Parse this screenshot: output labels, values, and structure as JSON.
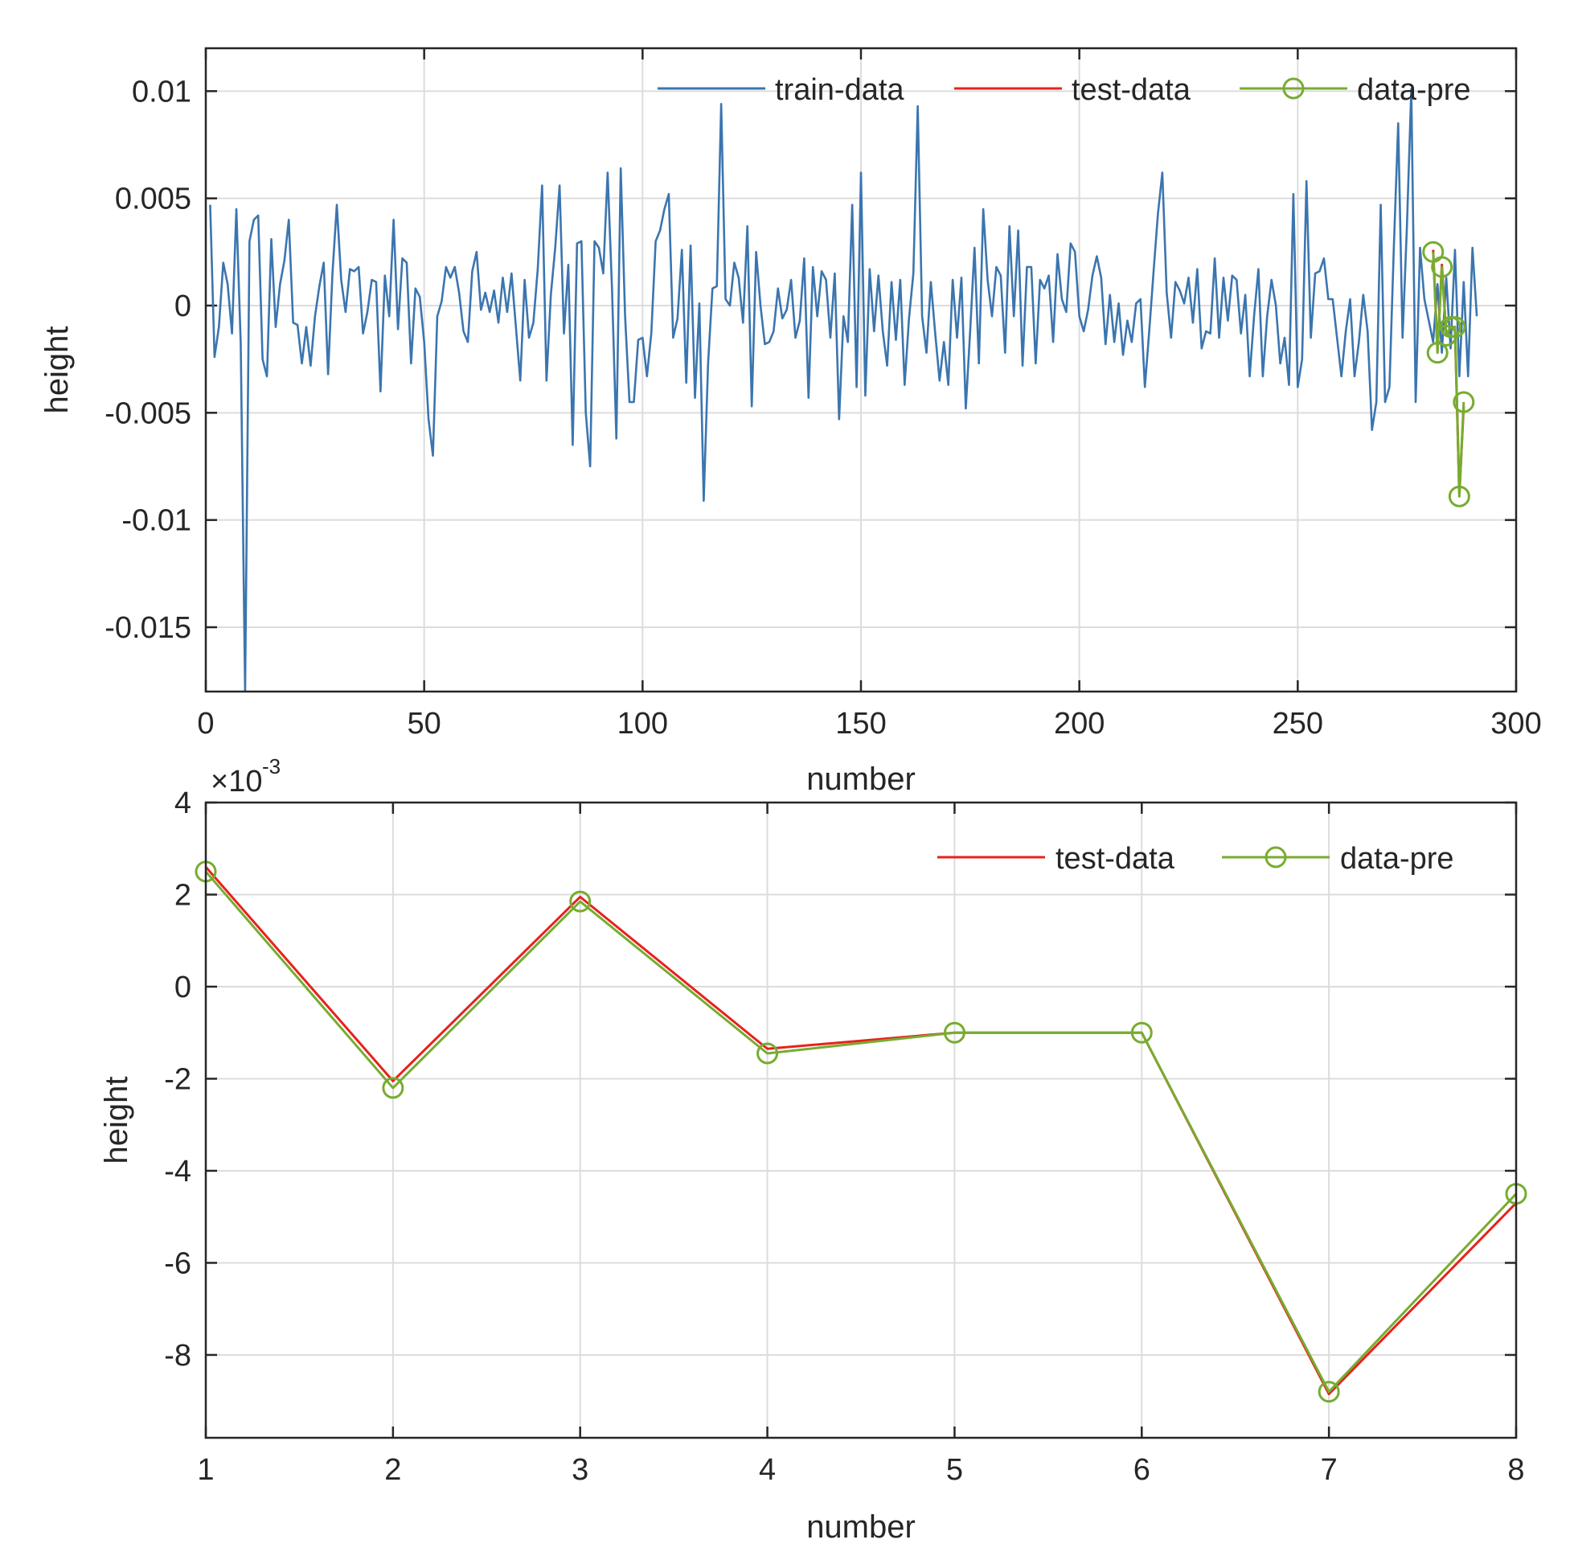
{
  "colors": {
    "train": "#3b75af",
    "test": "#e8211d",
    "pre": "#77ac30",
    "grid": "#dcdcdc",
    "axis": "#262626"
  },
  "chart_data": [
    {
      "id": "top",
      "type": "line",
      "xlabel": "number",
      "ylabel": "height",
      "xlim": [
        0,
        300
      ],
      "ylim": [
        -0.018,
        0.012
      ],
      "xticks": [
        0,
        50,
        100,
        150,
        200,
        250,
        300
      ],
      "yticks": [
        0.01,
        0.005,
        0,
        -0.005,
        -0.01,
        -0.015
      ],
      "xtick_labels": [
        "0",
        "50",
        "100",
        "150",
        "200",
        "250",
        "300"
      ],
      "ytick_labels": [
        "0.01",
        "0.005",
        "0",
        "-0.005",
        "-0.01",
        "-0.015"
      ],
      "grid": true,
      "legend": {
        "position": "top-right",
        "entries": [
          "train-data",
          "test-data",
          "data-pre"
        ]
      },
      "series": [
        {
          "name": "train-data",
          "x_start": 1,
          "values": [
            0.0047,
            -0.0024,
            -0.001,
            0.002,
            0.001,
            -0.0013,
            0.0045,
            -0.0018,
            -0.018,
            0.003,
            0.004,
            0.0042,
            -0.0025,
            -0.0033,
            0.0031,
            -0.001,
            0.001,
            0.0021,
            0.004,
            -0.0008,
            -0.0009,
            -0.0027,
            -0.001,
            -0.0028,
            -0.0005,
            0.0009,
            0.002,
            -0.0032,
            0.0015,
            0.0047,
            0.0012,
            -0.0003,
            0.0017,
            0.0016,
            0.0018,
            -0.0013,
            -0.0003,
            0.0012,
            0.0011,
            -0.004,
            0.0014,
            -0.0005,
            0.004,
            -0.0011,
            0.0022,
            0.002,
            -0.0027,
            0.0008,
            0.0004,
            -0.0017,
            -0.0053,
            -0.007,
            -0.0005,
            0.0002,
            0.0018,
            0.0013,
            0.0018,
            0.0006,
            -0.0012,
            -0.0017,
            0.0016,
            0.0025,
            -0.0002,
            0.0006,
            -0.0003,
            0.0007,
            -0.0008,
            0.0013,
            -0.0003,
            0.0015,
            -0.001,
            -0.0035,
            0.0012,
            -0.0015,
            -0.0008,
            0.0017,
            0.0056,
            -0.0035,
            0.0005,
            0.0027,
            0.0056,
            -0.0013,
            0.0019,
            -0.0065,
            0.0029,
            0.003,
            -0.005,
            -0.0075,
            0.003,
            0.0027,
            0.0015,
            0.0062,
            0.0008,
            -0.0062,
            0.0064,
            -0.0005,
            -0.0045,
            -0.0045,
            -0.0016,
            -0.0015,
            -0.0033,
            -0.0013,
            0.003,
            0.0035,
            0.0045,
            0.0052,
            -0.0015,
            -0.0006,
            0.0026,
            -0.0036,
            0.0028,
            -0.0043,
            0.0001,
            -0.0091,
            -0.0027,
            0.0008,
            0.0009,
            0.0094,
            0.0003,
            0,
            0.002,
            0.0013,
            -0.0008,
            0.0037,
            -0.0047,
            0.0025,
            0,
            -0.0018,
            -0.0017,
            -0.0012,
            0.0008,
            -0.0006,
            -0.0002,
            0.0012,
            -0.0015,
            -0.0007,
            0.0022,
            -0.0043,
            0.0018,
            -0.0005,
            0.0016,
            0.0012,
            -0.0015,
            0.0015,
            -0.0053,
            -0.0005,
            -0.0017,
            0.0047,
            -0.0038,
            0.0062,
            -0.0042,
            0.0017,
            -0.0012,
            0.0014,
            -0.0012,
            -0.0028,
            0.0011,
            -0.0016,
            0.0012,
            -0.0037,
            -0.0006,
            0.0015,
            0.0093,
            -0.0005,
            -0.0022,
            0.0011,
            -0.0013,
            -0.0035,
            -0.0017,
            -0.0037,
            0.0012,
            -0.0015,
            0.0013,
            -0.0048,
            -0.0012,
            0.0027,
            -0.0027,
            0.0045,
            0.0012,
            -0.0005,
            0.0018,
            0.0014,
            -0.0022,
            0.0037,
            -0.0005,
            0.0035,
            -0.0028,
            0.0018,
            0.0018,
            -0.0027,
            0.0012,
            0.0008,
            0.0014,
            -0.0017,
            0.0024,
            0.0003,
            -0.0003,
            0.0029,
            0.0025,
            -0.0005,
            -0.0012,
            -0.0002,
            0.0014,
            0.0023,
            0.0013,
            -0.0018,
            0.0005,
            -0.0017,
            0.0001,
            -0.0023,
            -0.0007,
            -0.0017,
            0.0001,
            0.0003,
            -0.0038,
            -0.0012,
            0.0016,
            0.0043,
            0.0062,
            0.0006,
            -0.0015,
            0.0011,
            0.0007,
            0.0001,
            0.0013,
            -0.0008,
            0.0017,
            -0.002,
            -0.0012,
            -0.0013,
            0.0022,
            -0.0015,
            0.0013,
            -0.0007,
            0.0014,
            0.0012,
            -0.0013,
            0.0005,
            -0.0033,
            -0.0005,
            0.0017,
            -0.0033,
            -0.0005,
            0.0012,
            0,
            -0.0027,
            -0.0015,
            -0.0037,
            0.0052,
            -0.0038,
            -0.0025,
            0.0058,
            -0.0015,
            0.0015,
            0.0016,
            0.0022,
            0.0003,
            0.0003,
            -0.0015,
            -0.0033,
            -0.0012,
            0.0003,
            -0.0033,
            -0.0017,
            0.0005,
            -0.0012,
            -0.0058,
            -0.0045,
            0.0047,
            -0.0045,
            -0.0038,
            0.0027,
            0.0085,
            -0.0015,
            0.0037,
            0.0101,
            -0.0045,
            0.0027,
            0.0003,
            -0.0007,
            -0.0017,
            0.001,
            -0.0022,
            0.0013,
            -0.002,
            0.0026,
            -0.0033,
            0.0011,
            -0.0033,
            0.0027,
            -0.0005
          ]
        },
        {
          "name": "test-data",
          "x": [
            281,
            282,
            283,
            284,
            285,
            286,
            287,
            288
          ],
          "values": [
            0.0026,
            -0.0021,
            0.0019,
            -0.0014,
            -0.001,
            -0.001,
            -0.0088,
            -0.0047
          ]
        },
        {
          "name": "data-pre",
          "x": [
            281,
            282,
            283,
            284,
            285,
            286,
            287,
            288
          ],
          "values": [
            0.0025,
            -0.0022,
            0.0018,
            -0.0014,
            -0.001,
            -0.001,
            -0.0089,
            -0.0045
          ],
          "marker": "circle"
        }
      ]
    },
    {
      "id": "bottom",
      "type": "line",
      "xlabel": "number",
      "ylabel": "height",
      "exponent_label": "×10",
      "exponent_power": "-3",
      "xlim": [
        1,
        8
      ],
      "ylim": [
        -9.8,
        4
      ],
      "xticks": [
        1,
        2,
        3,
        4,
        5,
        6,
        7,
        8
      ],
      "yticks": [
        4,
        2,
        0,
        -2,
        -4,
        -6,
        -8
      ],
      "xtick_labels": [
        "1",
        "2",
        "3",
        "4",
        "5",
        "6",
        "7",
        "8"
      ],
      "ytick_labels": [
        "4",
        "2",
        "0",
        "-2",
        "-4",
        "-6",
        "-8"
      ],
      "grid": true,
      "legend": {
        "position": "top-right",
        "entries": [
          "test-data",
          "data-pre"
        ]
      },
      "series": [
        {
          "name": "test-data",
          "x": [
            1,
            2,
            3,
            4,
            5,
            6,
            7,
            8
          ],
          "values": [
            2.6,
            -2.05,
            1.95,
            -1.35,
            -1.0,
            -1.0,
            -8.85,
            -4.7
          ]
        },
        {
          "name": "data-pre",
          "x": [
            1,
            2,
            3,
            4,
            5,
            6,
            7,
            8
          ],
          "values": [
            2.5,
            -2.2,
            1.85,
            -1.45,
            -1.0,
            -1.0,
            -8.8,
            -4.5
          ],
          "marker": "circle"
        }
      ]
    }
  ]
}
